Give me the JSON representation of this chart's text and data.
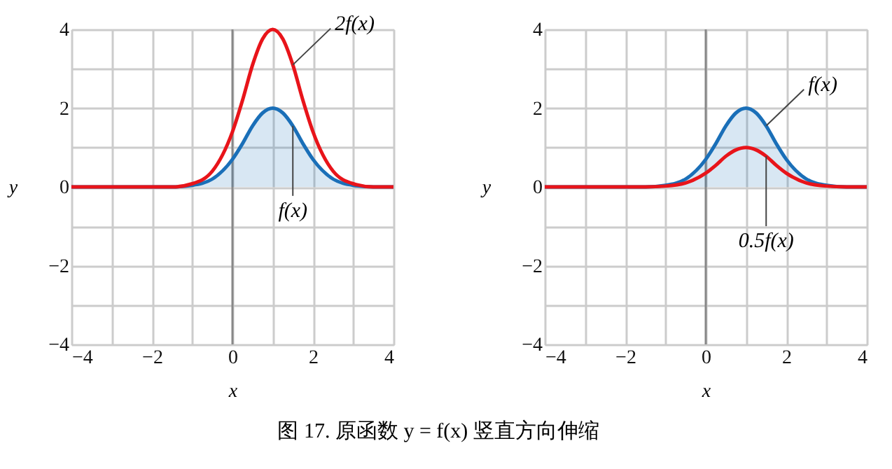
{
  "chart_data": [
    {
      "type": "line",
      "title": "图 17. 原函数 y = f(x) 竖直方向伸缩",
      "xlabel": "x",
      "ylabel": "y",
      "xlim": [
        -4,
        4
      ],
      "ylim": [
        -4,
        4
      ],
      "xticks": [
        -4,
        {
          "value": -3,
          "label": null
        },
        -2,
        {
          "value": -1,
          "label": null
        },
        0,
        {
          "value": 1,
          "label": null
        },
        2,
        {
          "value": 3,
          "label": null
        },
        4
      ],
      "yticks": [
        -4,
        {
          "value": -3,
          "label": null
        },
        -2,
        {
          "value": -1,
          "label": null
        },
        0,
        {
          "value": 1,
          "label": null
        },
        2,
        {
          "value": 3,
          "label": null
        },
        4
      ],
      "grid": true,
      "legend": false,
      "x": [
        -4,
        -1.5,
        -1,
        -0.5,
        0,
        0.25,
        0.5,
        0.75,
        1,
        1.25,
        1.5,
        1.75,
        2,
        2.5,
        3,
        3.5,
        4
      ],
      "series": [
        {
          "type": "area",
          "name": "f(x)",
          "color": "#1a6fb8",
          "values": [
            0,
            0,
            0.04,
            0.2,
            0.7,
            1.1,
            1.55,
            1.88,
            2,
            1.88,
            1.55,
            1.1,
            0.7,
            0.2,
            0.04,
            0,
            0
          ]
        },
        {
          "name": "2f(x)",
          "color": "#e8141a",
          "values": [
            0,
            0,
            0.08,
            0.4,
            1.4,
            2.2,
            3.1,
            3.76,
            4,
            3.76,
            3.1,
            2.2,
            1.4,
            0.4,
            0.08,
            0,
            0
          ]
        }
      ],
      "ref_lines": [
        {
          "axis": "x",
          "value": 0,
          "color": "#888888"
        }
      ]
    },
    {
      "type": "line",
      "xlabel": "x",
      "ylabel": "y",
      "xlim": [
        -4,
        4
      ],
      "ylim": [
        -4,
        4
      ],
      "xticks": [
        -4,
        {
          "value": -3,
          "label": null
        },
        -2,
        {
          "value": -1,
          "label": null
        },
        0,
        {
          "value": 1,
          "label": null
        },
        2,
        {
          "value": 3,
          "label": null
        },
        4
      ],
      "yticks": [
        -4,
        {
          "value": -3,
          "label": null
        },
        -2,
        {
          "value": -1,
          "label": null
        },
        0,
        {
          "value": 1,
          "label": null
        },
        2,
        {
          "value": 3,
          "label": null
        },
        4
      ],
      "grid": true,
      "legend": false,
      "x": [
        -4,
        -1.5,
        -1,
        -0.5,
        0,
        0.25,
        0.5,
        0.75,
        1,
        1.25,
        1.5,
        1.75,
        2,
        2.5,
        3,
        3.5,
        4
      ],
      "series": [
        {
          "type": "area",
          "name": "f(x)",
          "color": "#1a6fb8",
          "values": [
            0,
            0,
            0.04,
            0.2,
            0.7,
            1.1,
            1.55,
            1.88,
            2,
            1.88,
            1.55,
            1.1,
            0.7,
            0.2,
            0.04,
            0,
            0
          ]
        },
        {
          "name": "0.5f(x)",
          "color": "#e8141a",
          "values": [
            0,
            0,
            0.02,
            0.1,
            0.35,
            0.55,
            0.78,
            0.94,
            1,
            0.94,
            0.78,
            0.55,
            0.35,
            0.1,
            0.02,
            0,
            0
          ]
        }
      ],
      "ref_lines": [
        {
          "axis": "x",
          "value": 0,
          "color": "#888888"
        }
      ]
    }
  ]
}
